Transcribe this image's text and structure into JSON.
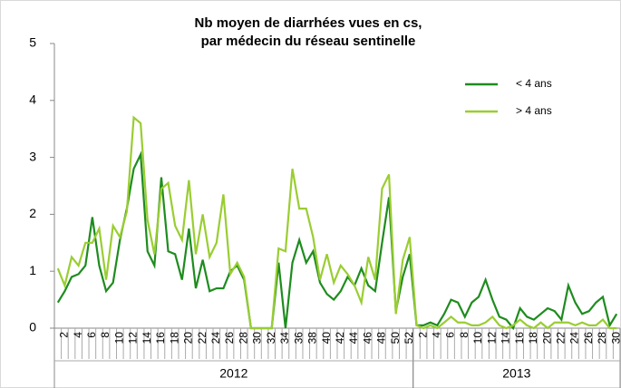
{
  "chart_data": {
    "type": "line",
    "title": [
      "Nb moyen de diarrhées vues en cs,",
      "par médecin du réseau sentinelle"
    ],
    "groups": [
      {
        "label": "2012",
        "categories": [
          null,
          "2",
          null,
          "4",
          null,
          "6",
          null,
          "8",
          null,
          "10",
          null,
          "12",
          null,
          "14",
          null,
          "16",
          null,
          "18",
          null,
          "20",
          null,
          "22",
          null,
          "24",
          null,
          "26",
          null,
          "28",
          null,
          "30",
          null,
          "32",
          null,
          "34",
          null,
          "36",
          null,
          "38",
          null,
          "40",
          null,
          "42",
          null,
          "44",
          null,
          "46",
          null,
          "48",
          null,
          "50",
          null,
          "52"
        ]
      },
      {
        "label": "2013",
        "categories": [
          null,
          "2",
          null,
          "4",
          null,
          "6",
          null,
          "8",
          null,
          "10",
          null,
          "12",
          null,
          "14",
          null,
          "16",
          null,
          "18",
          null,
          "20",
          null,
          "22",
          null,
          "24",
          null,
          "26",
          null,
          "28",
          null,
          "30"
        ]
      }
    ],
    "series": [
      {
        "name": "< 4 ans",
        "color": "#1e8c1e",
        "values": [
          0.45,
          0.65,
          0.9,
          0.95,
          1.1,
          1.95,
          1.1,
          0.65,
          0.8,
          1.55,
          2.1,
          2.8,
          3.05,
          1.35,
          1.1,
          2.65,
          1.35,
          1.3,
          0.85,
          1.75,
          0.7,
          1.2,
          0.65,
          0.7,
          0.7,
          1.0,
          1.1,
          0.85,
          0,
          0,
          0,
          0,
          1.15,
          0,
          1.15,
          1.55,
          1.15,
          1.35,
          0.8,
          0.6,
          0.5,
          0.65,
          0.9,
          0.75,
          1.05,
          0.75,
          0.65,
          1.5,
          2.3,
          0.3,
          0.9,
          1.3,
          0.05,
          0.05,
          0.1,
          0.05,
          0.25,
          0.5,
          0.45,
          0.2,
          0.45,
          0.55,
          0.85,
          0.5,
          0.2,
          0.15,
          0,
          0.35,
          0.2,
          0.15,
          0.25,
          0.35,
          0.3,
          0.15,
          0.75,
          0.45,
          0.25,
          0.3,
          0.45,
          0.55,
          0.05,
          0.25
        ]
      },
      {
        "name": "> 4 ans",
        "color": "#9acd32",
        "values": [
          1.05,
          0.75,
          1.25,
          1.1,
          1.5,
          1.5,
          1.75,
          0.85,
          1.8,
          1.6,
          2.05,
          3.7,
          3.6,
          1.9,
          1.3,
          2.45,
          2.55,
          1.8,
          1.55,
          2.6,
          1.3,
          2.0,
          1.25,
          1.5,
          2.35,
          0.95,
          1.15,
          0.9,
          0,
          0,
          0,
          0,
          1.4,
          1.35,
          2.8,
          2.1,
          2.1,
          1.6,
          0.85,
          1.3,
          0.8,
          1.1,
          0.95,
          0.75,
          0.45,
          1.25,
          0.85,
          2.45,
          2.7,
          0.25,
          1.2,
          1.6,
          0.05,
          0,
          0.05,
          0,
          0.1,
          0.2,
          0.1,
          0.1,
          0.05,
          0.05,
          0.1,
          0.2,
          0.05,
          0,
          0.05,
          0.15,
          0.05,
          0,
          0.1,
          0,
          0.1,
          0.1,
          0.1,
          0.05,
          0.1,
          0.05,
          0.05,
          0.15,
          0,
          0
        ]
      }
    ],
    "ylim": [
      0,
      5
    ],
    "yticks": [
      0,
      1,
      2,
      3,
      4,
      5
    ],
    "grid": false,
    "legend": "upper right"
  }
}
